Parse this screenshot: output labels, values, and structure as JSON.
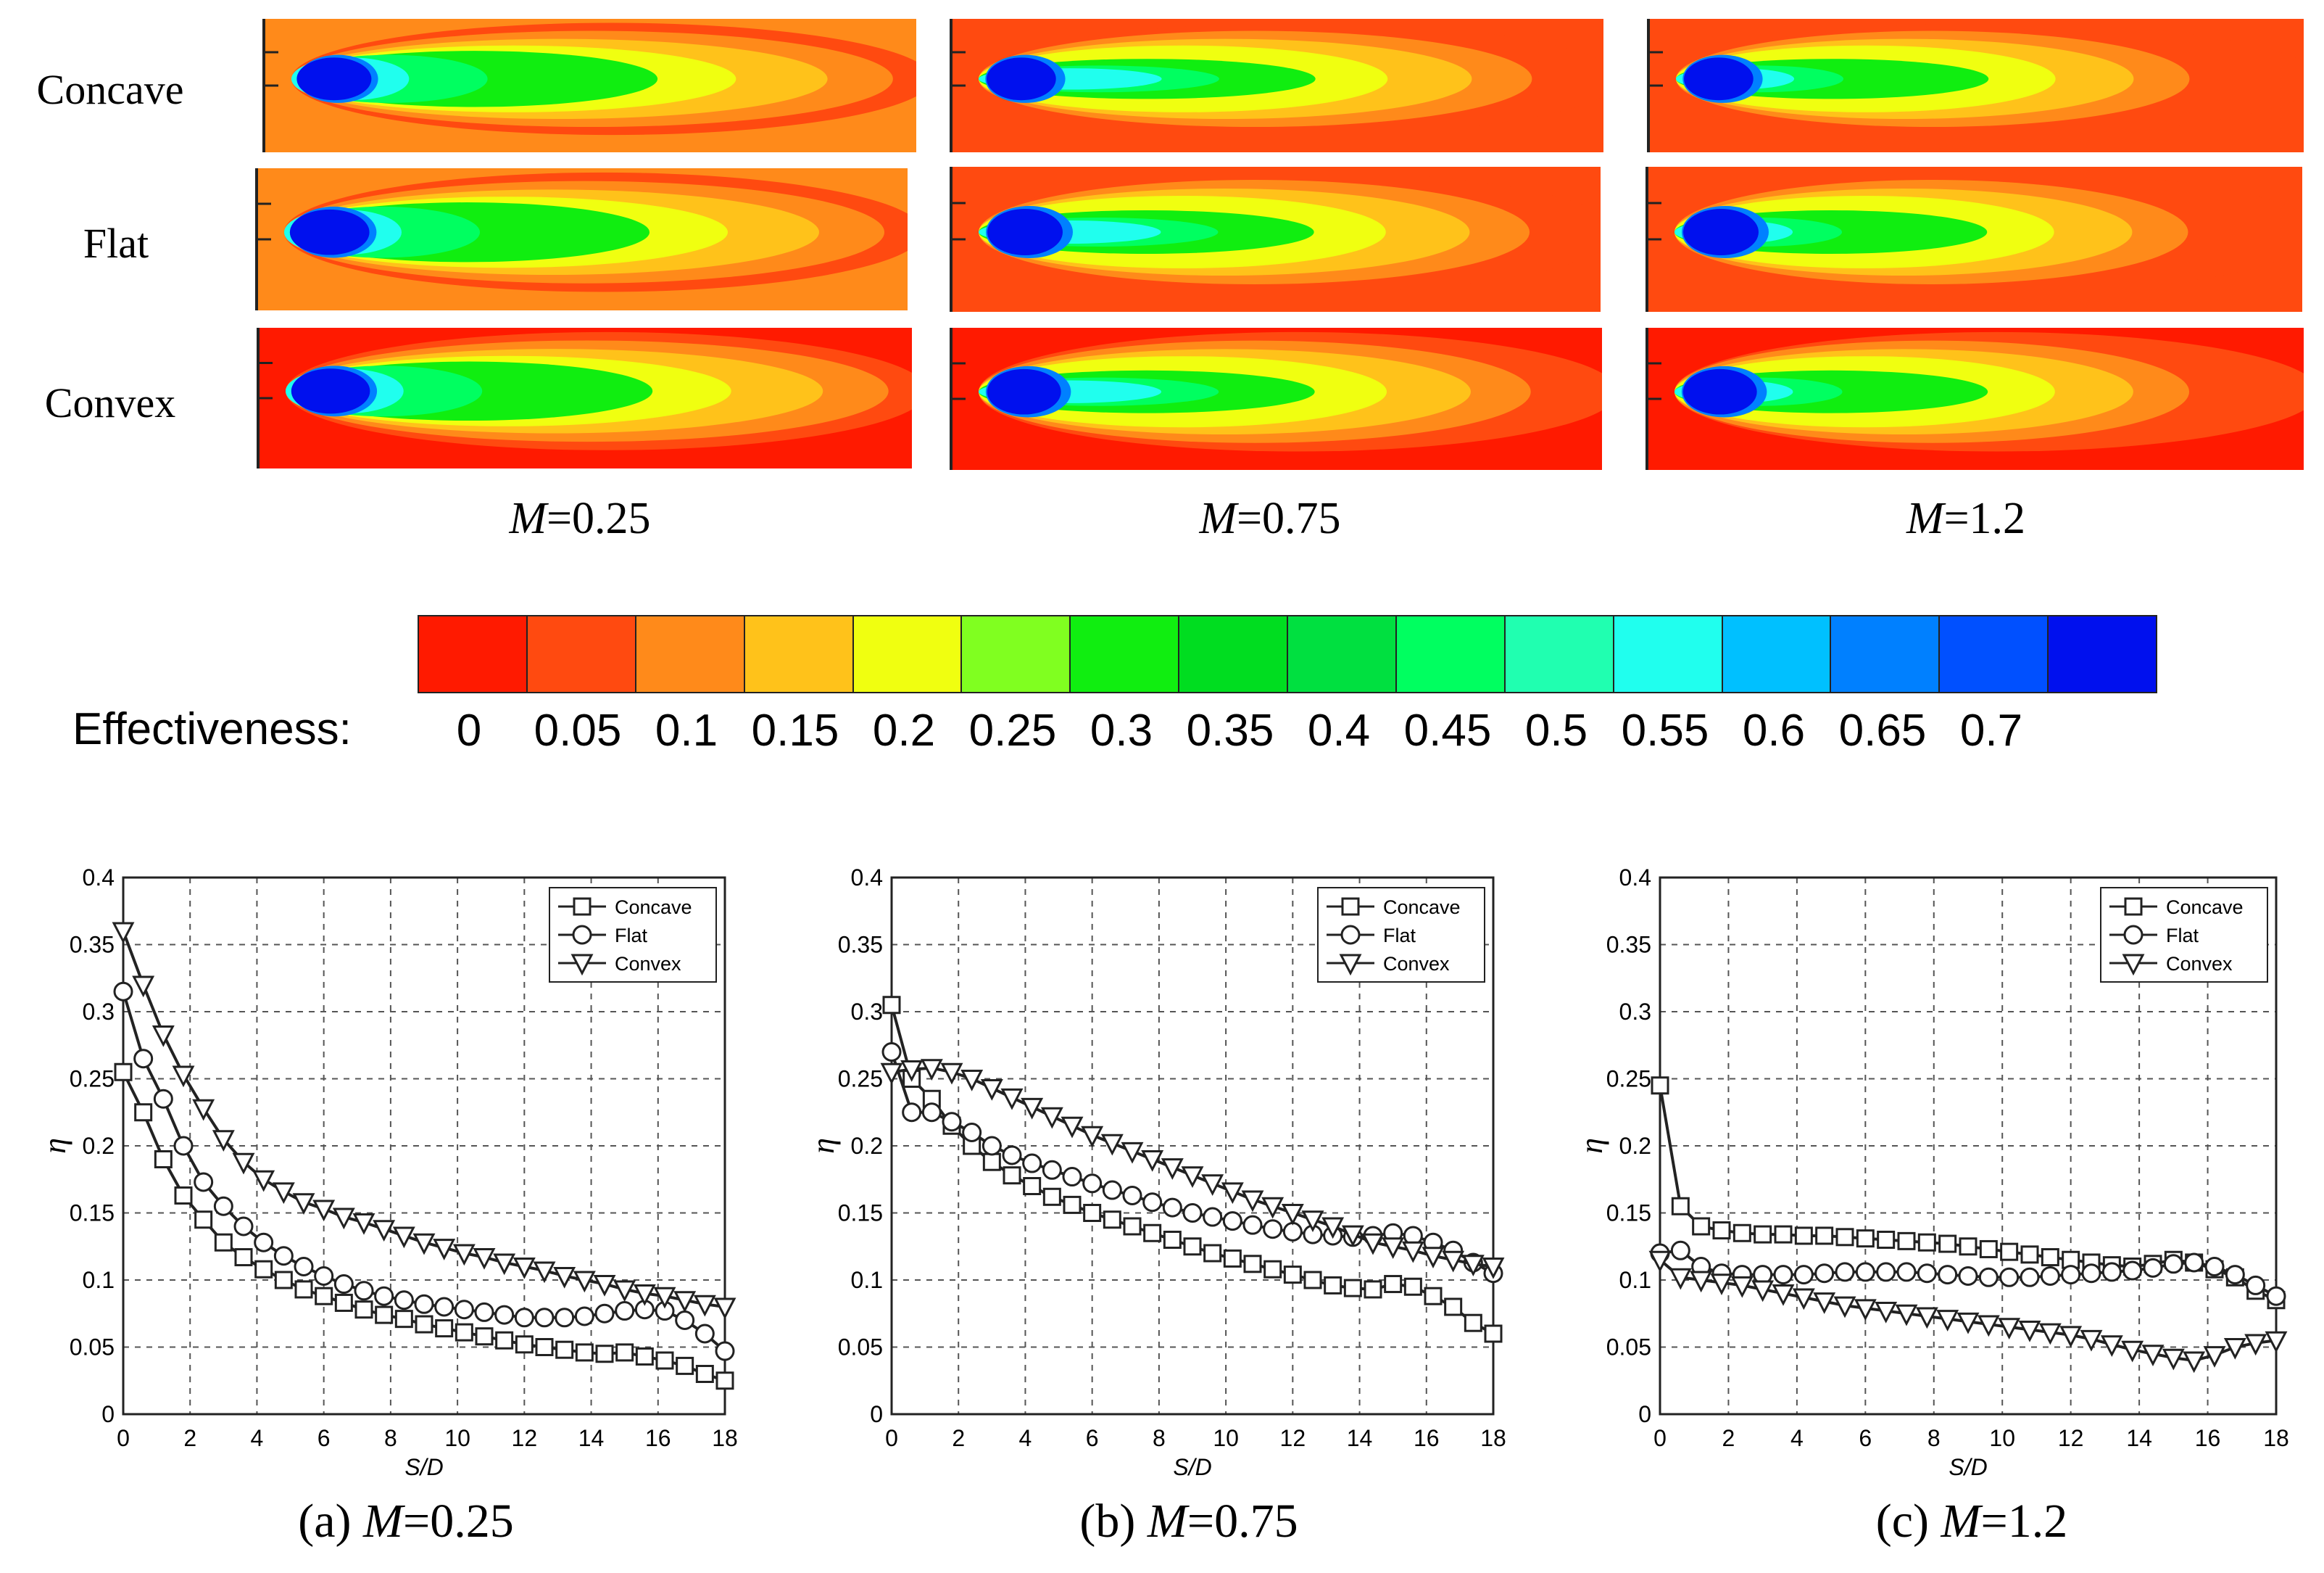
{
  "row_labels": [
    "Concave",
    "Flat",
    "Convex"
  ],
  "column_labels": [
    {
      "var": "M",
      "value": "=0.25"
    },
    {
      "var": "M",
      "value": "=0.75"
    },
    {
      "var": "M",
      "value": "=1.2"
    }
  ],
  "colorbar": {
    "title": "Effectiveness:",
    "ticks": [
      "0",
      "0.05",
      "0.1",
      "0.15",
      "0.2",
      "0.25",
      "0.3",
      "0.35",
      "0.4",
      "0.45",
      "0.5",
      "0.55",
      "0.6",
      "0.65",
      "0.7"
    ],
    "colors": [
      "#ff1a00",
      "#ff4a10",
      "#ff8a1a",
      "#ffc21a",
      "#f0ff10",
      "#80ff20",
      "#10ee10",
      "#00dd20",
      "#00e040",
      "#00ff60",
      "#20ffb0",
      "#20ffee",
      "#00c0ff",
      "#0080ff",
      "#0050ff",
      "#0010ee"
    ]
  },
  "chart_data": [
    {
      "type": "line",
      "caption_prefix": "(a) ",
      "caption_var": "M",
      "caption_value": "=0.25",
      "xlabel": "S/D",
      "ylabel": "η",
      "xlim": [
        0,
        18
      ],
      "ylim": [
        0,
        0.4
      ],
      "xticks": [
        "0",
        "2",
        "4",
        "6",
        "8",
        "10",
        "12",
        "14",
        "16",
        "18"
      ],
      "yticks": [
        "0",
        "0.05",
        "0.1",
        "0.15",
        "0.2",
        "0.25",
        "0.3",
        "0.35",
        "0.4"
      ],
      "legend": [
        "Concave",
        "Flat",
        "Convex"
      ],
      "x": [
        0,
        0.6,
        1.2,
        1.8,
        2.4,
        3,
        3.6,
        4.2,
        4.8,
        5.4,
        6,
        6.6,
        7.2,
        7.8,
        8.4,
        9,
        9.6,
        10.2,
        10.8,
        11.4,
        12,
        12.6,
        13.2,
        13.8,
        14.4,
        15,
        15.6,
        16.2,
        16.8,
        17.4,
        18
      ],
      "series": [
        {
          "name": "Concave",
          "marker": "square",
          "values": [
            0.255,
            0.225,
            0.19,
            0.163,
            0.145,
            0.128,
            0.117,
            0.108,
            0.1,
            0.093,
            0.088,
            0.083,
            0.078,
            0.074,
            0.071,
            0.067,
            0.064,
            0.061,
            0.058,
            0.055,
            0.052,
            0.05,
            0.048,
            0.046,
            0.045,
            0.046,
            0.043,
            0.04,
            0.036,
            0.03,
            0.025
          ]
        },
        {
          "name": "Flat",
          "marker": "circle",
          "values": [
            0.315,
            0.265,
            0.235,
            0.2,
            0.173,
            0.155,
            0.14,
            0.128,
            0.118,
            0.11,
            0.103,
            0.097,
            0.092,
            0.088,
            0.085,
            0.082,
            0.08,
            0.078,
            0.076,
            0.074,
            0.072,
            0.072,
            0.072,
            0.073,
            0.075,
            0.077,
            0.078,
            0.077,
            0.07,
            0.06,
            0.047
          ]
        },
        {
          "name": "Convex",
          "marker": "triangle-down",
          "values": [
            0.36,
            0.32,
            0.283,
            0.253,
            0.228,
            0.205,
            0.188,
            0.175,
            0.166,
            0.158,
            0.153,
            0.147,
            0.143,
            0.138,
            0.133,
            0.128,
            0.124,
            0.12,
            0.117,
            0.113,
            0.11,
            0.107,
            0.103,
            0.1,
            0.097,
            0.093,
            0.09,
            0.088,
            0.085,
            0.082,
            0.08
          ]
        }
      ]
    },
    {
      "type": "line",
      "caption_prefix": "(b) ",
      "caption_var": "M",
      "caption_value": "=0.75",
      "xlabel": "S/D",
      "ylabel": "η",
      "xlim": [
        0,
        18
      ],
      "ylim": [
        0,
        0.4
      ],
      "xticks": [
        "0",
        "2",
        "4",
        "6",
        "8",
        "10",
        "12",
        "14",
        "16",
        "18"
      ],
      "yticks": [
        "0",
        "0.05",
        "0.1",
        "0.15",
        "0.2",
        "0.25",
        "0.3",
        "0.35",
        "0.4"
      ],
      "legend": [
        "Concave",
        "Flat",
        "Convex"
      ],
      "x": [
        0,
        0.6,
        1.2,
        1.8,
        2.4,
        3,
        3.6,
        4.2,
        4.8,
        5.4,
        6,
        6.6,
        7.2,
        7.8,
        8.4,
        9,
        9.6,
        10.2,
        10.8,
        11.4,
        12,
        12.6,
        13.2,
        13.8,
        14.4,
        15,
        15.6,
        16.2,
        16.8,
        17.4,
        18
      ],
      "series": [
        {
          "name": "Concave",
          "marker": "square",
          "values": [
            0.305,
            0.25,
            0.235,
            0.215,
            0.2,
            0.188,
            0.178,
            0.17,
            0.162,
            0.156,
            0.15,
            0.145,
            0.14,
            0.135,
            0.13,
            0.125,
            0.12,
            0.116,
            0.112,
            0.108,
            0.104,
            0.1,
            0.096,
            0.094,
            0.093,
            0.097,
            0.095,
            0.088,
            0.08,
            0.068,
            0.06
          ]
        },
        {
          "name": "Flat",
          "marker": "circle",
          "values": [
            0.27,
            0.225,
            0.225,
            0.218,
            0.21,
            0.2,
            0.193,
            0.187,
            0.182,
            0.177,
            0.172,
            0.167,
            0.163,
            0.158,
            0.154,
            0.15,
            0.147,
            0.144,
            0.141,
            0.138,
            0.136,
            0.134,
            0.133,
            0.132,
            0.133,
            0.135,
            0.133,
            0.128,
            0.122,
            0.113,
            0.105
          ]
        },
        {
          "name": "Convex",
          "marker": "triangle-down",
          "values": [
            0.255,
            0.257,
            0.258,
            0.255,
            0.25,
            0.243,
            0.236,
            0.229,
            0.222,
            0.215,
            0.208,
            0.202,
            0.196,
            0.19,
            0.184,
            0.178,
            0.172,
            0.166,
            0.16,
            0.155,
            0.15,
            0.145,
            0.14,
            0.134,
            0.128,
            0.125,
            0.122,
            0.118,
            0.115,
            0.112,
            0.11
          ]
        }
      ]
    },
    {
      "type": "line",
      "caption_prefix": "(c) ",
      "caption_var": "M",
      "caption_value": "=1.2",
      "xlabel": "S/D",
      "ylabel": "η",
      "xlim": [
        0,
        18
      ],
      "ylim": [
        0,
        0.4
      ],
      "xticks": [
        "0",
        "2",
        "4",
        "6",
        "8",
        "10",
        "12",
        "14",
        "16",
        "18"
      ],
      "yticks": [
        "0",
        "0.05",
        "0.1",
        "0.15",
        "0.2",
        "0.25",
        "0.3",
        "0.35",
        "0.4"
      ],
      "legend": [
        "Concave",
        "Flat",
        "Convex"
      ],
      "x": [
        0,
        0.6,
        1.2,
        1.8,
        2.4,
        3,
        3.6,
        4.2,
        4.8,
        5.4,
        6,
        6.6,
        7.2,
        7.8,
        8.4,
        9,
        9.6,
        10.2,
        10.8,
        11.4,
        12,
        12.6,
        13.2,
        13.8,
        14.4,
        15,
        15.6,
        16.2,
        16.8,
        17.4,
        18
      ],
      "series": [
        {
          "name": "Concave",
          "marker": "square",
          "values": [
            0.245,
            0.155,
            0.14,
            0.137,
            0.135,
            0.134,
            0.134,
            0.133,
            0.133,
            0.132,
            0.131,
            0.13,
            0.129,
            0.128,
            0.127,
            0.125,
            0.123,
            0.121,
            0.119,
            0.117,
            0.115,
            0.113,
            0.111,
            0.11,
            0.112,
            0.115,
            0.113,
            0.108,
            0.102,
            0.092,
            0.085
          ]
        },
        {
          "name": "Flat",
          "marker": "circle",
          "values": [
            0.12,
            0.122,
            0.11,
            0.105,
            0.104,
            0.104,
            0.104,
            0.104,
            0.105,
            0.106,
            0.106,
            0.106,
            0.106,
            0.105,
            0.104,
            0.103,
            0.102,
            0.102,
            0.102,
            0.103,
            0.104,
            0.105,
            0.106,
            0.107,
            0.109,
            0.112,
            0.113,
            0.11,
            0.104,
            0.096,
            0.088
          ]
        },
        {
          "name": "Convex",
          "marker": "triangle-down",
          "values": [
            0.115,
            0.102,
            0.1,
            0.098,
            0.096,
            0.093,
            0.09,
            0.087,
            0.084,
            0.081,
            0.079,
            0.077,
            0.075,
            0.073,
            0.071,
            0.069,
            0.067,
            0.065,
            0.063,
            0.061,
            0.059,
            0.056,
            0.052,
            0.048,
            0.045,
            0.042,
            0.04,
            0.044,
            0.05,
            0.053,
            0.055
          ]
        }
      ]
    }
  ]
}
